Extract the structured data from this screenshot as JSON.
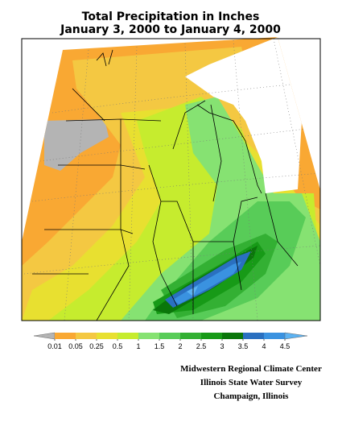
{
  "title": "Total Precipitation in Inches",
  "subtitle": "January 3, 2000 to January 4, 2000",
  "legend": {
    "levels": [
      0.01,
      0.05,
      0.25,
      0.5,
      1,
      1.5,
      2,
      2.5,
      3,
      3.5,
      4,
      4.5
    ],
    "colors": [
      "#b4b4b4",
      "#f9a833",
      "#f4c842",
      "#e8e030",
      "#c6ec2e",
      "#86e272",
      "#58cc58",
      "#33b033",
      "#179a17",
      "#0a760a",
      "#2a70c0",
      "#3a92e0",
      "#5cb2f2",
      "#a0d4fa"
    ]
  },
  "credits": [
    "Midwestern Regional Climate Center",
    "Illinois State Water Survey",
    "Champaign, Illinois"
  ]
}
